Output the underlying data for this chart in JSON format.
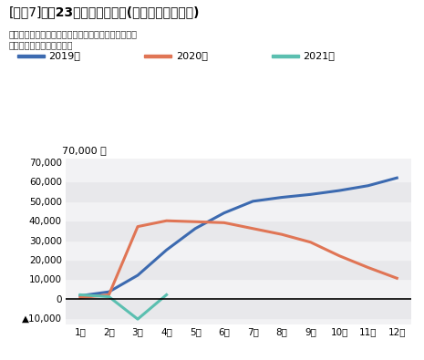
{
  "title_bracket": "[図表7]",
  "title_main": "東京23区の転入超過数(各年の月次累計値)",
  "subtitle1": "出所：総務省「住民基本台帳人口移動報告」をもとに",
  "subtitle2": "ニッセイ基礎研究所が作成",
  "xlabel_unit": "70,000 人",
  "months": [
    1,
    2,
    3,
    4,
    5,
    6,
    7,
    8,
    9,
    10,
    11,
    12
  ],
  "month_labels": [
    "1月",
    "2月",
    "3月",
    "4月",
    "5月",
    "6月",
    "7月",
    "8月",
    "9月",
    "10月",
    "11月",
    "12月"
  ],
  "series": {
    "2019年": {
      "color": "#3c6ab0",
      "data": [
        1500,
        3500,
        12000,
        25000,
        36000,
        44000,
        50000,
        52000,
        53500,
        55500,
        58000,
        62000
      ]
    },
    "2020年": {
      "color": "#e07555",
      "data": [
        500,
        2000,
        37000,
        40000,
        39500,
        39000,
        36000,
        33000,
        29000,
        22000,
        16000,
        10500
      ]
    },
    "2021年": {
      "color": "#5bbfb0",
      "data": [
        2000,
        1000,
        -10500,
        2000,
        null,
        null,
        null,
        null,
        null,
        null,
        null,
        null
      ]
    }
  },
  "ylim": [
    -13000,
    72000
  ],
  "yticks": [
    -10000,
    0,
    10000,
    20000,
    30000,
    40000,
    50000,
    60000,
    70000
  ],
  "band_colors": [
    "#e8e8eb",
    "#f2f2f4"
  ],
  "background_color": "#ffffff",
  "legend_labels": [
    "2019年",
    "2020年",
    "2021年"
  ],
  "legend_colors": [
    "#3c6ab0",
    "#e07555",
    "#5bbfb0"
  ]
}
